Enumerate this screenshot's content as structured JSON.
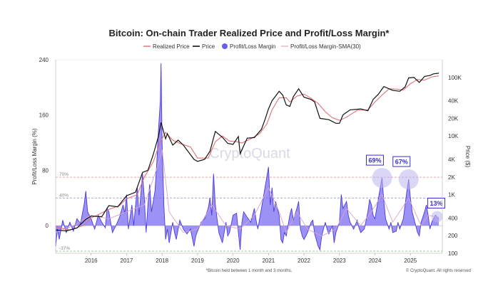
{
  "colors": {
    "realized_price": "#e0707a",
    "price": "#111111",
    "margin_fill": "#7b6cf0",
    "margin_line": "#4a3be0",
    "sma": "#d7a6c8",
    "annotation": "#3a2fd0",
    "ref70": "#e08a8a",
    "ref40": "#8c8cc8",
    "ref_low": "#8fbf8f"
  },
  "chart_data": {
    "type": "line",
    "title": "Bitcoin: On-chain Trader Realized Price and Profit/Loss Margin*",
    "footnote": "*Bitcoin held between 1 month and 3 months.",
    "copyright": "© CryptoQuant. All rights reserved",
    "watermark": "CryptoQuant",
    "legend": [
      "Realized Price",
      "Price",
      "Profit/Loss Margin",
      "Profit/Loss Margin-SMA(30)"
    ],
    "ylabel_left": "Profit/Loss Margin (%)",
    "ylabel_right": "Price ($)",
    "ylim_left": [
      -40,
      240
    ],
    "ylim_right_log": [
      100,
      200000
    ],
    "xlim": [
      2015.0,
      2025.9
    ],
    "left_ticks": [
      "240",
      "160",
      "80",
      "0"
    ],
    "right_ticks": [
      "100K",
      "40K",
      "20K",
      "10K",
      "4K",
      "2K",
      "1K",
      "400",
      "200",
      "100"
    ],
    "x_ticks": [
      "2016",
      "2017",
      "2018",
      "2019",
      "2020",
      "2021",
      "2022",
      "2023",
      "2024",
      "2025"
    ],
    "reference_lines": [
      {
        "label": "70%",
        "value": 70
      },
      {
        "label": "40%",
        "value": 40
      },
      {
        "label": "-37%",
        "value": -37
      }
    ],
    "annotations": [
      "69%",
      "67%",
      "13%"
    ],
    "annotation_points": [
      {
        "x": 2024.2,
        "y": 69
      },
      {
        "x": 2024.95,
        "y": 67
      },
      {
        "x": 2025.75,
        "y": 13
      }
    ],
    "price_series": [
      [
        2015.0,
        250
      ],
      [
        2015.3,
        240
      ],
      [
        2015.6,
        270
      ],
      [
        2015.85,
        380
      ],
      [
        2016.0,
        430
      ],
      [
        2016.3,
        420
      ],
      [
        2016.5,
        650
      ],
      [
        2016.75,
        620
      ],
      [
        2017.0,
        960
      ],
      [
        2017.25,
        1100
      ],
      [
        2017.45,
        2400
      ],
      [
        2017.6,
        2600
      ],
      [
        2017.75,
        4800
      ],
      [
        2017.9,
        10000
      ],
      [
        2017.97,
        17000
      ],
      [
        2018.1,
        9000
      ],
      [
        2018.15,
        11000
      ],
      [
        2018.3,
        7000
      ],
      [
        2018.45,
        8500
      ],
      [
        2018.6,
        7000
      ],
      [
        2018.9,
        4000
      ],
      [
        2019.0,
        3700
      ],
      [
        2019.2,
        4000
      ],
      [
        2019.35,
        5500
      ],
      [
        2019.5,
        12000
      ],
      [
        2019.7,
        9500
      ],
      [
        2019.85,
        7500
      ],
      [
        2020.0,
        7200
      ],
      [
        2020.15,
        9800
      ],
      [
        2020.2,
        5000
      ],
      [
        2020.4,
        9200
      ],
      [
        2020.6,
        9400
      ],
      [
        2020.8,
        13000
      ],
      [
        2020.9,
        19000
      ],
      [
        2021.0,
        29000
      ],
      [
        2021.1,
        40000
      ],
      [
        2021.3,
        58000
      ],
      [
        2021.4,
        50000
      ],
      [
        2021.5,
        34000
      ],
      [
        2021.6,
        32000
      ],
      [
        2021.7,
        47000
      ],
      [
        2021.85,
        64000
      ],
      [
        2022.0,
        46000
      ],
      [
        2022.2,
        42000
      ],
      [
        2022.3,
        38000
      ],
      [
        2022.45,
        20000
      ],
      [
        2022.7,
        19000
      ],
      [
        2022.9,
        16500
      ],
      [
        2023.0,
        16500
      ],
      [
        2023.1,
        23000
      ],
      [
        2023.3,
        28000
      ],
      [
        2023.6,
        29000
      ],
      [
        2023.8,
        27000
      ],
      [
        2023.95,
        42000
      ],
      [
        2024.1,
        52000
      ],
      [
        2024.25,
        70000
      ],
      [
        2024.5,
        60000
      ],
      [
        2024.7,
        58000
      ],
      [
        2024.85,
        69000
      ],
      [
        2024.95,
        98000
      ],
      [
        2025.1,
        100000
      ],
      [
        2025.25,
        82000
      ],
      [
        2025.4,
        104000
      ],
      [
        2025.55,
        108000
      ],
      [
        2025.65,
        115000
      ],
      [
        2025.8,
        118000
      ]
    ],
    "realized_price_series": [
      [
        2015.0,
        280
      ],
      [
        2015.4,
        250
      ],
      [
        2015.8,
        300
      ],
      [
        2016.0,
        400
      ],
      [
        2016.5,
        560
      ],
      [
        2016.8,
        650
      ],
      [
        2017.0,
        850
      ],
      [
        2017.3,
        1000
      ],
      [
        2017.5,
        2000
      ],
      [
        2017.75,
        3600
      ],
      [
        2017.95,
        8000
      ],
      [
        2018.1,
        11500
      ],
      [
        2018.3,
        8500
      ],
      [
        2018.5,
        7500
      ],
      [
        2018.8,
        6500
      ],
      [
        2019.0,
        4200
      ],
      [
        2019.3,
        4200
      ],
      [
        2019.5,
        8000
      ],
      [
        2019.7,
        10000
      ],
      [
        2019.9,
        8200
      ],
      [
        2020.1,
        8000
      ],
      [
        2020.25,
        7600
      ],
      [
        2020.5,
        9000
      ],
      [
        2020.75,
        11000
      ],
      [
        2020.95,
        16000
      ],
      [
        2021.1,
        28000
      ],
      [
        2021.3,
        45000
      ],
      [
        2021.5,
        45000
      ],
      [
        2021.6,
        38000
      ],
      [
        2021.8,
        48000
      ],
      [
        2022.0,
        52000
      ],
      [
        2022.2,
        44000
      ],
      [
        2022.4,
        36000
      ],
      [
        2022.6,
        26000
      ],
      [
        2022.8,
        20500
      ],
      [
        2023.0,
        18500
      ],
      [
        2023.2,
        21000
      ],
      [
        2023.5,
        27500
      ],
      [
        2023.8,
        28000
      ],
      [
        2024.0,
        38000
      ],
      [
        2024.2,
        50000
      ],
      [
        2024.4,
        64000
      ],
      [
        2024.6,
        63000
      ],
      [
        2024.8,
        61000
      ],
      [
        2025.0,
        78000
      ],
      [
        2025.2,
        92000
      ],
      [
        2025.4,
        90000
      ],
      [
        2025.6,
        102000
      ],
      [
        2025.8,
        106000
      ]
    ],
    "margin_series": [
      [
        2015.0,
        -30
      ],
      [
        2015.05,
        -5
      ],
      [
        2015.1,
        -20
      ],
      [
        2015.2,
        8
      ],
      [
        2015.3,
        -10
      ],
      [
        2015.4,
        5
      ],
      [
        2015.5,
        -8
      ],
      [
        2015.6,
        10
      ],
      [
        2015.7,
        3
      ],
      [
        2015.8,
        30
      ],
      [
        2015.85,
        50
      ],
      [
        2015.9,
        20
      ],
      [
        2016.0,
        10
      ],
      [
        2016.1,
        -5
      ],
      [
        2016.2,
        15
      ],
      [
        2016.3,
        5
      ],
      [
        2016.4,
        -3
      ],
      [
        2016.45,
        25
      ],
      [
        2016.5,
        20
      ],
      [
        2016.6,
        -10
      ],
      [
        2016.7,
        0
      ],
      [
        2016.8,
        12
      ],
      [
        2016.9,
        30
      ],
      [
        2016.95,
        18
      ],
      [
        2017.0,
        45
      ],
      [
        2017.05,
        -5
      ],
      [
        2017.15,
        30
      ],
      [
        2017.2,
        0
      ],
      [
        2017.3,
        55
      ],
      [
        2017.35,
        15
      ],
      [
        2017.45,
        75
      ],
      [
        2017.5,
        40
      ],
      [
        2017.55,
        -10
      ],
      [
        2017.6,
        30
      ],
      [
        2017.65,
        60
      ],
      [
        2017.7,
        20
      ],
      [
        2017.8,
        50
      ],
      [
        2017.85,
        90
      ],
      [
        2017.9,
        140
      ],
      [
        2017.95,
        180
      ],
      [
        2017.97,
        235
      ],
      [
        2018.0,
        120
      ],
      [
        2018.05,
        30
      ],
      [
        2018.1,
        -20
      ],
      [
        2018.15,
        -5
      ],
      [
        2018.2,
        -25
      ],
      [
        2018.3,
        5
      ],
      [
        2018.35,
        -10
      ],
      [
        2018.4,
        -20
      ],
      [
        2018.5,
        8
      ],
      [
        2018.6,
        -5
      ],
      [
        2018.7,
        -12
      ],
      [
        2018.8,
        -5
      ],
      [
        2018.9,
        -30
      ],
      [
        2018.95,
        -15
      ],
      [
        2019.0,
        -8
      ],
      [
        2019.1,
        5
      ],
      [
        2019.2,
        10
      ],
      [
        2019.3,
        25
      ],
      [
        2019.35,
        40
      ],
      [
        2019.4,
        15
      ],
      [
        2019.45,
        75
      ],
      [
        2019.5,
        30
      ],
      [
        2019.6,
        -10
      ],
      [
        2019.7,
        -25
      ],
      [
        2019.8,
        5
      ],
      [
        2019.85,
        -15
      ],
      [
        2019.9,
        -10
      ],
      [
        2020.0,
        15
      ],
      [
        2020.1,
        18
      ],
      [
        2020.15,
        -10
      ],
      [
        2020.2,
        -35
      ],
      [
        2020.25,
        5
      ],
      [
        2020.3,
        20
      ],
      [
        2020.4,
        12
      ],
      [
        2020.5,
        5
      ],
      [
        2020.6,
        25
      ],
      [
        2020.65,
        8
      ],
      [
        2020.7,
        -5
      ],
      [
        2020.8,
        25
      ],
      [
        2020.85,
        40
      ],
      [
        2020.9,
        55
      ],
      [
        2020.95,
        70
      ],
      [
        2021.0,
        85
      ],
      [
        2021.05,
        30
      ],
      [
        2021.1,
        55
      ],
      [
        2021.15,
        20
      ],
      [
        2021.2,
        35
      ],
      [
        2021.3,
        15
      ],
      [
        2021.35,
        -20
      ],
      [
        2021.4,
        -25
      ],
      [
        2021.45,
        -10
      ],
      [
        2021.5,
        -15
      ],
      [
        2021.6,
        15
      ],
      [
        2021.65,
        25
      ],
      [
        2021.7,
        8
      ],
      [
        2021.8,
        25
      ],
      [
        2021.85,
        35
      ],
      [
        2021.9,
        -5
      ],
      [
        2021.95,
        -15
      ],
      [
        2022.0,
        -20
      ],
      [
        2022.1,
        -10
      ],
      [
        2022.2,
        5
      ],
      [
        2022.25,
        8
      ],
      [
        2022.3,
        -12
      ],
      [
        2022.4,
        -30
      ],
      [
        2022.45,
        -35
      ],
      [
        2022.5,
        -15
      ],
      [
        2022.6,
        5
      ],
      [
        2022.65,
        -5
      ],
      [
        2022.7,
        -12
      ],
      [
        2022.8,
        0
      ],
      [
        2022.85,
        -25
      ],
      [
        2022.9,
        -10
      ],
      [
        2023.0,
        5
      ],
      [
        2023.05,
        45
      ],
      [
        2023.1,
        25
      ],
      [
        2023.2,
        35
      ],
      [
        2023.25,
        15
      ],
      [
        2023.3,
        5
      ],
      [
        2023.4,
        -5
      ],
      [
        2023.5,
        8
      ],
      [
        2023.55,
        -3
      ],
      [
        2023.6,
        -10
      ],
      [
        2023.7,
        -5
      ],
      [
        2023.8,
        20
      ],
      [
        2023.85,
        38
      ],
      [
        2023.9,
        30
      ],
      [
        2023.95,
        15
      ],
      [
        2024.0,
        10
      ],
      [
        2024.05,
        25
      ],
      [
        2024.1,
        40
      ],
      [
        2024.15,
        55
      ],
      [
        2024.2,
        69
      ],
      [
        2024.25,
        35
      ],
      [
        2024.3,
        10
      ],
      [
        2024.4,
        -5
      ],
      [
        2024.45,
        5
      ],
      [
        2024.5,
        -10
      ],
      [
        2024.6,
        -8
      ],
      [
        2024.65,
        5
      ],
      [
        2024.7,
        -5
      ],
      [
        2024.8,
        10
      ],
      [
        2024.85,
        30
      ],
      [
        2024.9,
        50
      ],
      [
        2024.95,
        67
      ],
      [
        2025.0,
        40
      ],
      [
        2025.05,
        20
      ],
      [
        2025.1,
        10
      ],
      [
        2025.2,
        -10
      ],
      [
        2025.25,
        -15
      ],
      [
        2025.3,
        5
      ],
      [
        2025.4,
        20
      ],
      [
        2025.45,
        30
      ],
      [
        2025.5,
        15
      ],
      [
        2025.55,
        -5
      ],
      [
        2025.6,
        5
      ],
      [
        2025.7,
        15
      ],
      [
        2025.75,
        13
      ],
      [
        2025.8,
        10
      ]
    ],
    "sma_series": [
      [
        2015.0,
        -10
      ],
      [
        2015.5,
        0
      ],
      [
        2016.0,
        15
      ],
      [
        2016.5,
        10
      ],
      [
        2017.0,
        20
      ],
      [
        2017.5,
        30
      ],
      [
        2017.9,
        90
      ],
      [
        2018.0,
        110
      ],
      [
        2018.2,
        20
      ],
      [
        2018.6,
        -10
      ],
      [
        2019.0,
        -5
      ],
      [
        2019.4,
        30
      ],
      [
        2019.8,
        0
      ],
      [
        2020.2,
        -5
      ],
      [
        2020.6,
        15
      ],
      [
        2021.0,
        55
      ],
      [
        2021.3,
        20
      ],
      [
        2021.5,
        -10
      ],
      [
        2021.8,
        20
      ],
      [
        2022.1,
        -5
      ],
      [
        2022.5,
        -15
      ],
      [
        2022.9,
        -5
      ],
      [
        2023.2,
        25
      ],
      [
        2023.6,
        0
      ],
      [
        2023.9,
        20
      ],
      [
        2024.2,
        45
      ],
      [
        2024.5,
        5
      ],
      [
        2024.95,
        40
      ],
      [
        2025.3,
        0
      ],
      [
        2025.5,
        15
      ],
      [
        2025.8,
        12
      ]
    ]
  }
}
